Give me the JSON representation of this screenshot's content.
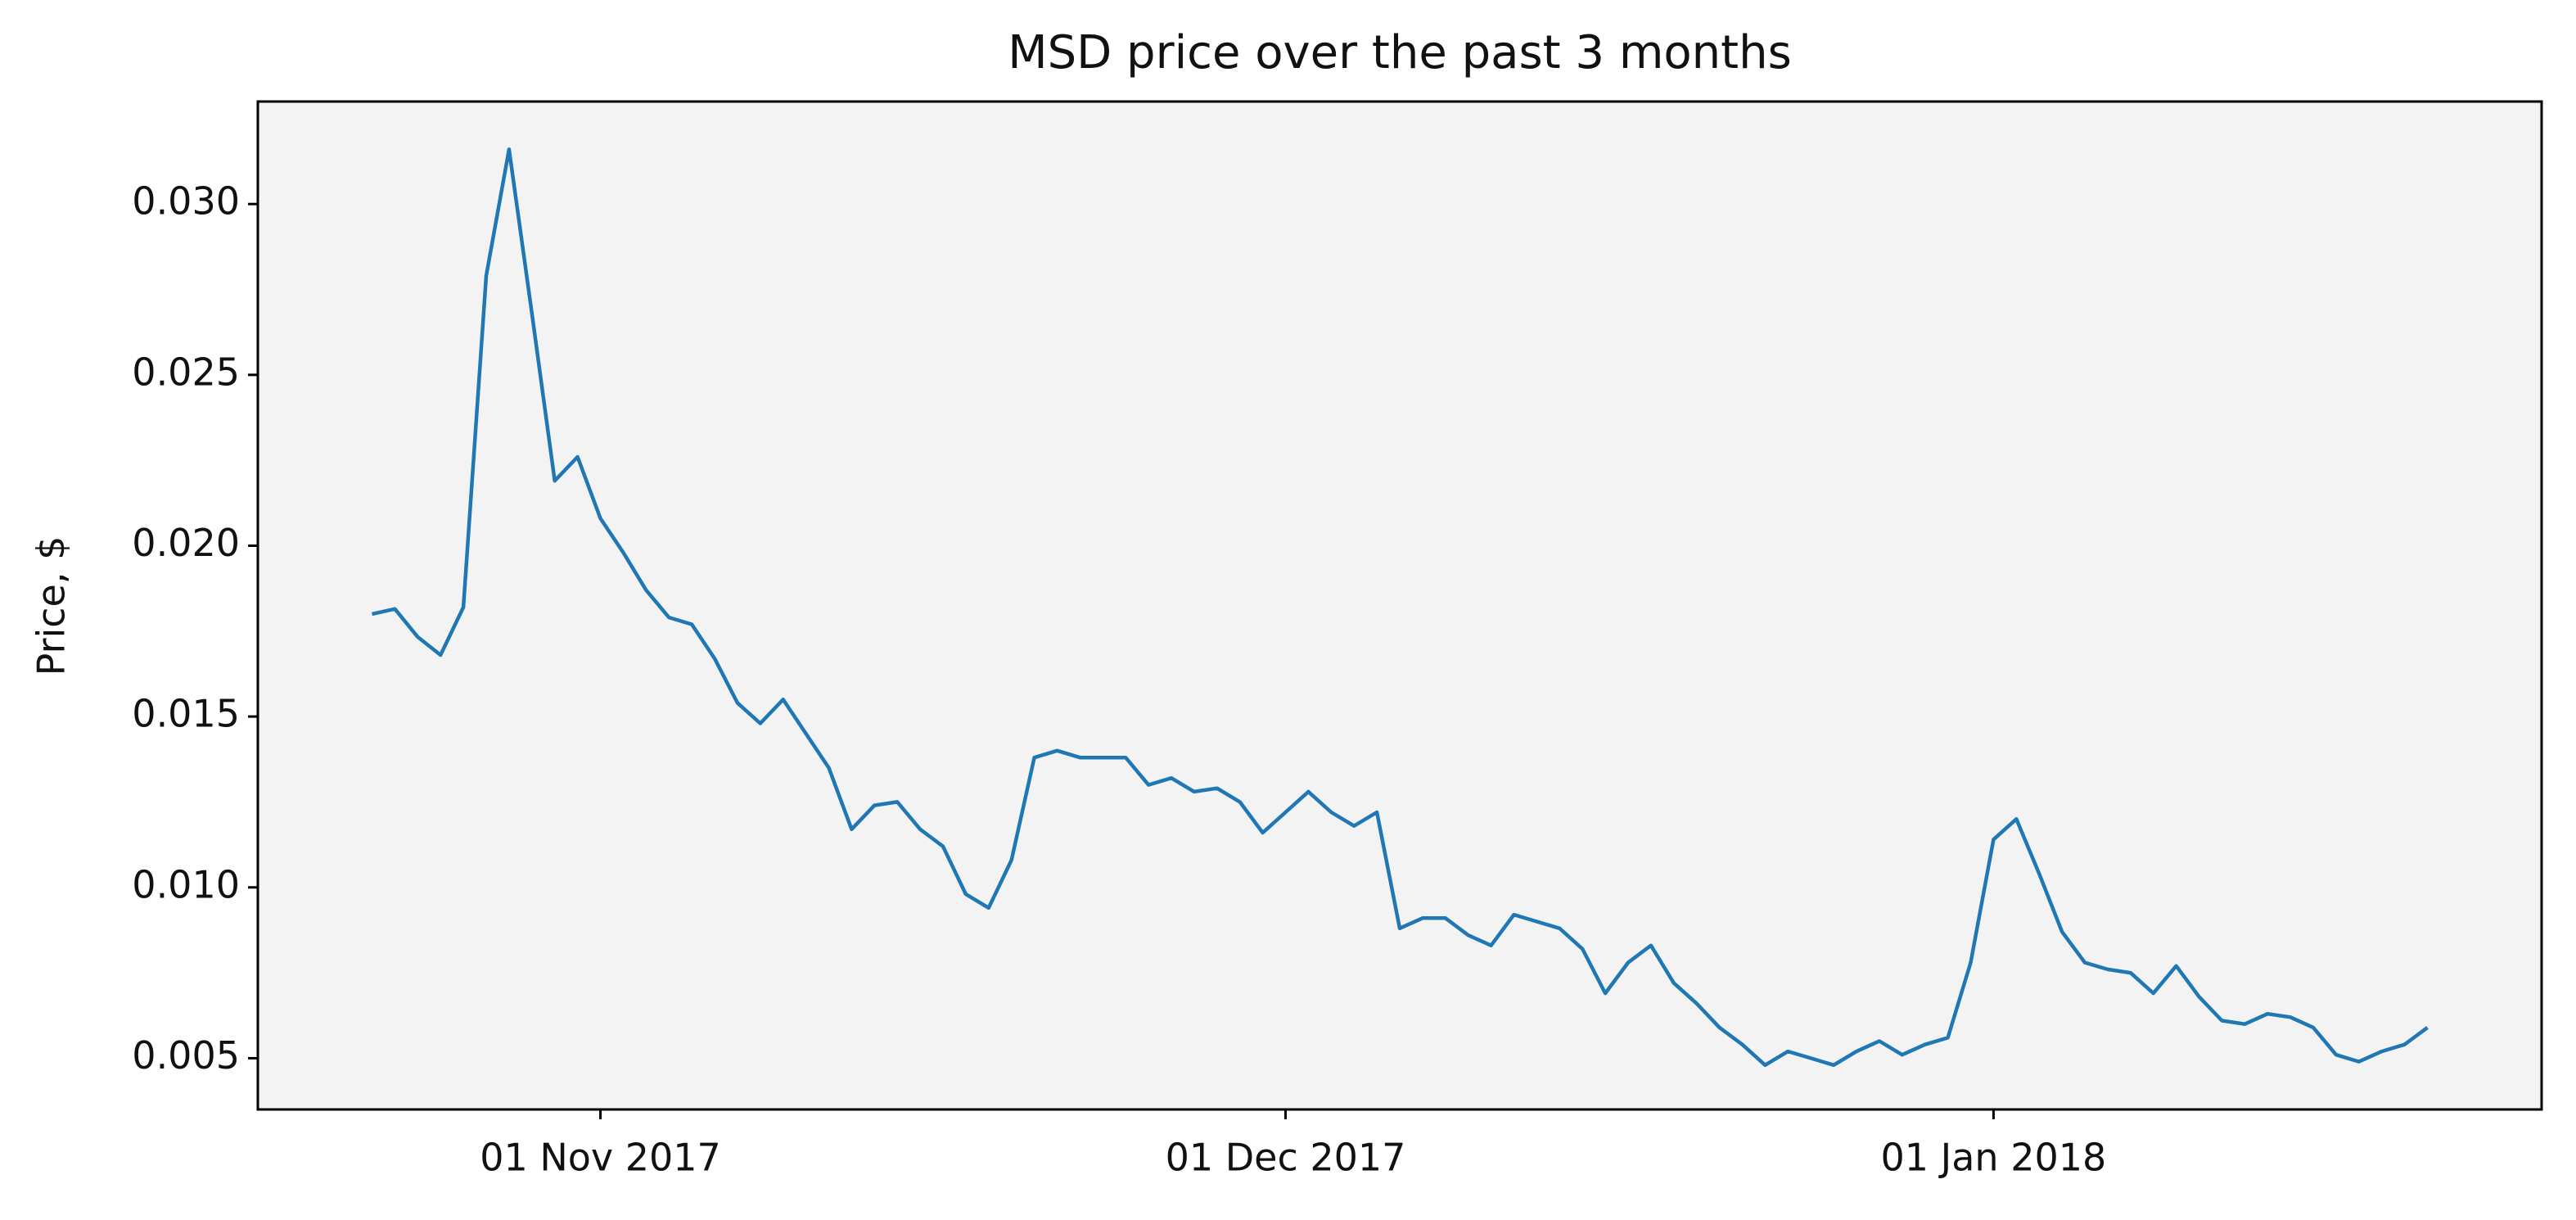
{
  "chart_data": {
    "type": "line",
    "title": "MSD price over the past 3 months",
    "y_label": "Price, $",
    "x": [
      "2017-10-22",
      "2017-10-23",
      "2017-10-24",
      "2017-10-25",
      "2017-10-26",
      "2017-10-27",
      "2017-10-28",
      "2017-10-29",
      "2017-10-30",
      "2017-10-31",
      "2017-11-01",
      "2017-11-02",
      "2017-11-03",
      "2017-11-04",
      "2017-11-05",
      "2017-11-06",
      "2017-11-07",
      "2017-11-08",
      "2017-11-09",
      "2017-11-10",
      "2017-11-11",
      "2017-11-12",
      "2017-11-13",
      "2017-11-14",
      "2017-11-15",
      "2017-11-16",
      "2017-11-17",
      "2017-11-18",
      "2017-11-19",
      "2017-11-20",
      "2017-11-21",
      "2017-11-22",
      "2017-11-23",
      "2017-11-24",
      "2017-11-25",
      "2017-11-26",
      "2017-11-27",
      "2017-11-28",
      "2017-11-29",
      "2017-11-30",
      "2017-12-01",
      "2017-12-02",
      "2017-12-03",
      "2017-12-04",
      "2017-12-05",
      "2017-12-06",
      "2017-12-07",
      "2017-12-08",
      "2017-12-09",
      "2017-12-10",
      "2017-12-11",
      "2017-12-12",
      "2017-12-13",
      "2017-12-14",
      "2017-12-15",
      "2017-12-16",
      "2017-12-17",
      "2017-12-18",
      "2017-12-19",
      "2017-12-20",
      "2017-12-21",
      "2017-12-22",
      "2017-12-23",
      "2017-12-24",
      "2017-12-25",
      "2017-12-26",
      "2017-12-27",
      "2017-12-28",
      "2017-12-29",
      "2017-12-30",
      "2017-12-31",
      "2018-01-01",
      "2018-01-02",
      "2018-01-03",
      "2018-01-04",
      "2018-01-05",
      "2018-01-06",
      "2018-01-07",
      "2018-01-08",
      "2018-01-09",
      "2018-01-10",
      "2018-01-11",
      "2018-01-12",
      "2018-01-13",
      "2018-01-14",
      "2018-01-15",
      "2018-01-16",
      "2018-01-17",
      "2018-01-18",
      "2018-01-19",
      "2018-01-20"
    ],
    "series": [
      {
        "name": "MSD",
        "color": "#1f77b4",
        "values": [
          0.018,
          0.01815,
          0.01733,
          0.0168,
          0.0182,
          0.0279,
          0.0316,
          0.0268,
          0.0219,
          0.0226,
          0.0208,
          0.0198,
          0.0187,
          0.0179,
          0.0177,
          0.0167,
          0.0154,
          0.0148,
          0.0155,
          0.0145,
          0.0135,
          0.0117,
          0.0124,
          0.0125,
          0.0117,
          0.0112,
          0.0098,
          0.0094,
          0.0108,
          0.0138,
          0.014,
          0.0138,
          0.0138,
          0.0138,
          0.013,
          0.0132,
          0.0128,
          0.0129,
          0.0125,
          0.0116,
          0.0122,
          0.0128,
          0.0122,
          0.0118,
          0.0122,
          0.0088,
          0.0091,
          0.0091,
          0.0086,
          0.0083,
          0.0092,
          0.009,
          0.0088,
          0.0082,
          0.0069,
          0.0078,
          0.0083,
          0.0072,
          0.0066,
          0.0059,
          0.0054,
          0.0048,
          0.0052,
          0.005,
          0.0048,
          0.0052,
          0.0055,
          0.0051,
          0.0054,
          0.0056,
          0.0078,
          0.0114,
          0.012,
          0.0104,
          0.0087,
          0.0078,
          0.0076,
          0.0075,
          0.0069,
          0.0077,
          0.0068,
          0.0061,
          0.006,
          0.0063,
          0.0062,
          0.0059,
          0.0051,
          0.0049,
          0.0052,
          0.0054,
          0.0059
        ]
      }
    ],
    "xlim": [
      "2017-10-17",
      "2018-01-25"
    ],
    "xticks": [
      {
        "value": "2017-11-01",
        "label": "01 Nov 2017"
      },
      {
        "value": "2017-12-01",
        "label": "01 Dec 2017"
      },
      {
        "value": "2018-01-01",
        "label": "01 Jan 2018"
      }
    ],
    "ylim": [
      0.0035,
      0.033
    ],
    "yticks": [
      0.005,
      {
        "value": 0.01,
        "label": "0.010"
      },
      0.015,
      {
        "value": 0.02,
        "label": "0.020"
      },
      0.025,
      {
        "value": 0.03,
        "label": "0.030"
      }
    ],
    "grid": false,
    "background": "#f3f3f3"
  }
}
